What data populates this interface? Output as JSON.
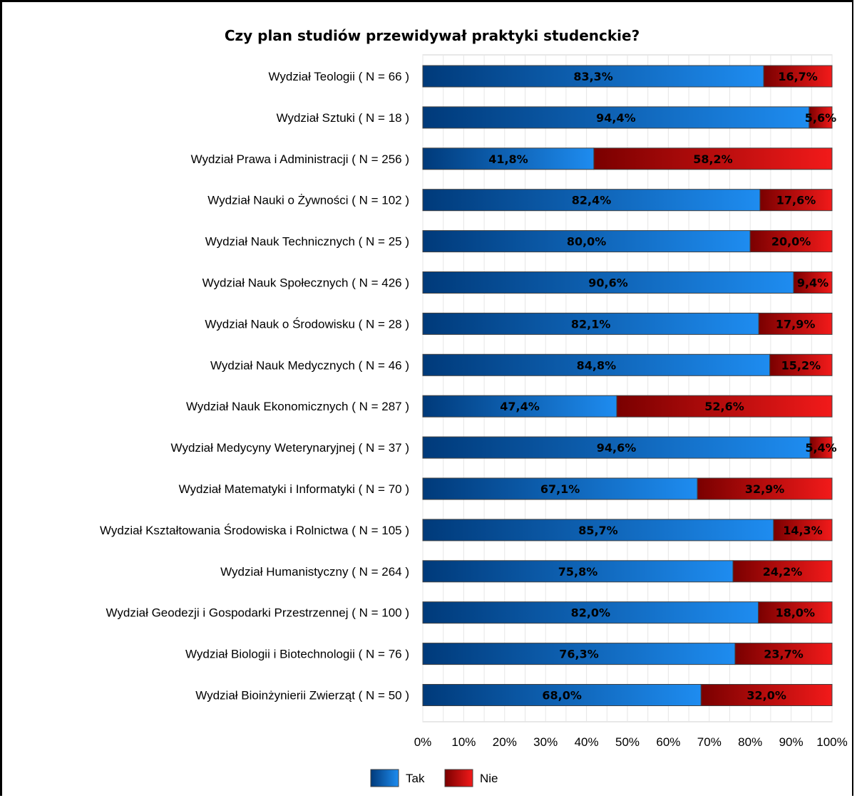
{
  "chart_data": {
    "type": "bar",
    "orientation": "horizontal",
    "stacked": "percent",
    "title": "Czy plan studiów przewidywał praktyki studenckie?",
    "categories": [
      "Wydział Teologii ( N = 66 )",
      "Wydział Sztuki ( N = 18 )",
      "Wydział Prawa i Administracji ( N = 256 )",
      "Wydział Nauki o Żywności ( N = 102 )",
      "Wydział Nauk Technicznych ( N = 25 )",
      "Wydział Nauk Społecznych ( N = 426 )",
      "Wydział Nauk o Środowisku ( N = 28 )",
      "Wydział Nauk Medycznych ( N = 46 )",
      "Wydział Nauk Ekonomicznych ( N = 287 )",
      "Wydział Medycyny Weterynaryjnej ( N = 37 )",
      "Wydział Matematyki i Informatyki ( N = 70 )",
      "Wydział Kształtowania Środowiska i Rolnictwa ( N = 105 )",
      "Wydział Humanistyczny ( N = 264 )",
      "Wydział Geodezji i Gospodarki Przestrzennej ( N = 100 )",
      "Wydział Biologii i Biotechnologii ( N = 76 )",
      "Wydział Bioinżynierii Zwierząt ( N = 50 )"
    ],
    "series": [
      {
        "name": "Tak",
        "values": [
          83.3,
          94.4,
          41.8,
          82.4,
          80.0,
          90.6,
          82.1,
          84.8,
          47.4,
          94.6,
          67.1,
          85.7,
          75.8,
          82.0,
          76.3,
          68.0
        ],
        "labels": [
          "83,3%",
          "94,4%",
          "41,8%",
          "82,4%",
          "80,0%",
          "90,6%",
          "82,1%",
          "84,8%",
          "47,4%",
          "94,6%",
          "67,1%",
          "85,7%",
          "75,8%",
          "82,0%",
          "76,3%",
          "68,0%"
        ],
        "color_dark": "#003a7a",
        "color_light": "#1e8cf0"
      },
      {
        "name": "Nie",
        "values": [
          16.7,
          5.6,
          58.2,
          17.6,
          20.0,
          9.4,
          17.9,
          15.2,
          52.6,
          5.4,
          32.9,
          14.3,
          24.2,
          18.0,
          23.7,
          32.0
        ],
        "labels": [
          "16,7%",
          "5,6%",
          "58,2%",
          "17,6%",
          "20,0%",
          "9,4%",
          "17,9%",
          "15,2%",
          "52,6%",
          "5,4%",
          "32,9%",
          "14,3%",
          "24,2%",
          "18,0%",
          "23,7%",
          "32,0%"
        ],
        "color_dark": "#7a0000",
        "color_light": "#f21a1a"
      }
    ],
    "xlim": [
      0,
      100
    ],
    "xticks": [
      "0%",
      "10%",
      "20%",
      "30%",
      "40%",
      "50%",
      "60%",
      "70%",
      "80%",
      "90%",
      "100%"
    ],
    "grid": true,
    "legend_position": "bottom-center"
  }
}
